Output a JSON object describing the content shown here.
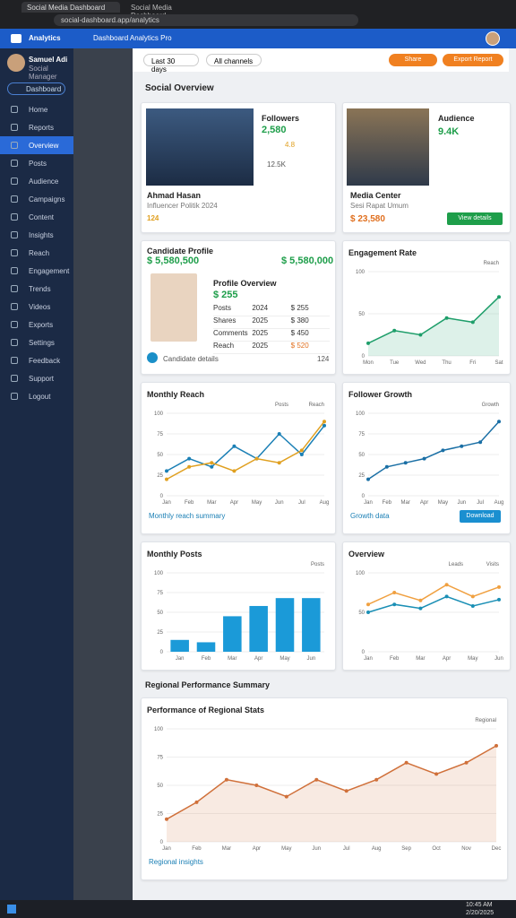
{
  "browser": {
    "tabs": [
      "Social Media Dashboard",
      "Social Media Dashboard"
    ],
    "url": "social-dashboard.app/analytics"
  },
  "app": {
    "title": "Dashboard Analytics Pro"
  },
  "sidebar": {
    "brand": "Analytics",
    "user_name": "Samuel Adi",
    "user_role": "Social Manager",
    "search": "Dashboard",
    "items": [
      "Home",
      "Reports",
      "Overview",
      "Posts",
      "Audience",
      "Campaigns",
      "Content",
      "Insights",
      "Reach",
      "Engagement",
      "Trends",
      "Videos",
      "Exports",
      "Settings",
      "Feedback",
      "Support",
      "Logout"
    ],
    "active": 2
  },
  "filters": [
    "Last 30 days",
    "All channels"
  ],
  "actions": [
    "Share",
    "Export Report"
  ],
  "section_title": "Social Overview",
  "profiles": [
    {
      "label": "Followers",
      "name": "Ahmad Hasan",
      "subtitle": "Influencer Politik 2024",
      "stat": "2,580",
      "rating": "4.8",
      "reviews": "124",
      "sub_stat": "12.5K"
    },
    {
      "label": "Audience",
      "name": "Media Center",
      "subtitle": "Sesi Rapat Umum",
      "stat": "9.4K",
      "amount": "$ 23,580",
      "button": "View details"
    }
  ],
  "candidate": {
    "title": "Candidate Profile",
    "total": "$ 5,580,500",
    "score": "$ 5,580,000",
    "name": "Profile Overview",
    "value": "$ 255",
    "rows": [
      [
        "Posts",
        "2024",
        "$ 255"
      ],
      [
        "Shares",
        "2025",
        "$ 380"
      ],
      [
        "Comments",
        "2025",
        "$ 450"
      ],
      [
        "Reach",
        "2025",
        "$ 520"
      ]
    ],
    "footer": "Candidate details",
    "count": "124"
  },
  "charts": [
    {
      "type": "area",
      "title": "Engagement Rate",
      "categories": [
        "Mon",
        "Tue",
        "Wed",
        "Thu",
        "Fri",
        "Sat"
      ],
      "ylim": [
        0,
        100
      ],
      "yticks": [
        0,
        50,
        100
      ],
      "series": [
        {
          "name": "Reach",
          "color": "#1e9e6a",
          "values": [
            15,
            30,
            25,
            45,
            40,
            70
          ]
        }
      ]
    },
    {
      "type": "line",
      "title": "Monthly Reach",
      "categories": [
        "Jan",
        "Feb",
        "Mar",
        "Apr",
        "May",
        "Jun",
        "Jul",
        "Aug"
      ],
      "ylim": [
        0,
        100
      ],
      "yticks": [
        0,
        25,
        50,
        75,
        100
      ],
      "series": [
        {
          "name": "Reach",
          "color": "#1a7fb5",
          "values": [
            30,
            45,
            35,
            60,
            45,
            75,
            50,
            85
          ]
        },
        {
          "name": "Posts",
          "color": "#e0a020",
          "values": [
            20,
            35,
            40,
            30,
            45,
            40,
            55,
            90
          ]
        }
      ],
      "footer": "Monthly reach summary"
    },
    {
      "type": "line",
      "title": "Follower Growth",
      "categories": [
        "Jan",
        "Feb",
        "Mar",
        "Apr",
        "May",
        "Jun",
        "Jul",
        "Aug"
      ],
      "ylim": [
        0,
        100
      ],
      "yticks": [
        0,
        25,
        50,
        75,
        100
      ],
      "series": [
        {
          "name": "Growth",
          "color": "#1a6fa5",
          "values": [
            20,
            35,
            40,
            45,
            55,
            60,
            65,
            90
          ]
        }
      ],
      "footer": "Growth data",
      "button": "Download"
    },
    {
      "type": "bar",
      "title": "Monthly Posts",
      "categories": [
        "Jan",
        "Feb",
        "Mar",
        "Apr",
        "May",
        "Jun"
      ],
      "ylim": [
        0,
        100
      ],
      "yticks": [
        0,
        25,
        50,
        75,
        100
      ],
      "series": [
        {
          "name": "Posts",
          "color": "#1b9ad8",
          "values": [
            15,
            12,
            45,
            58,
            68,
            68
          ]
        }
      ]
    },
    {
      "type": "line",
      "title": "Overview",
      "categories": [
        "Jan",
        "Feb",
        "Mar",
        "Apr",
        "May",
        "Jun"
      ],
      "ylim": [
        0,
        100
      ],
      "yticks": [
        0,
        50,
        100
      ],
      "series": [
        {
          "name": "Visits",
          "color": "#f0a040",
          "values": [
            60,
            75,
            65,
            85,
            70,
            82
          ]
        },
        {
          "name": "Leads",
          "color": "#1a8fb5",
          "values": [
            50,
            60,
            55,
            70,
            58,
            66
          ]
        }
      ]
    },
    {
      "type": "area",
      "title": "Performance of Regional Stats",
      "categories": [
        "Jan",
        "Feb",
        "Mar",
        "Apr",
        "May",
        "Jun",
        "Jul",
        "Aug",
        "Sep",
        "Oct",
        "Nov",
        "Dec"
      ],
      "ylim": [
        0,
        100
      ],
      "yticks": [
        0,
        25,
        50,
        75,
        100
      ],
      "series": [
        {
          "name": "Regional",
          "color": "#d0703a",
          "values": [
            20,
            35,
            55,
            50,
            40,
            55,
            45,
            55,
            70,
            60,
            70,
            85
          ]
        }
      ],
      "footer": "Regional insights"
    }
  ],
  "big_section": "Regional Performance Summary",
  "taskbar": {
    "time": "10:45 AM",
    "date": "2/20/2025"
  }
}
